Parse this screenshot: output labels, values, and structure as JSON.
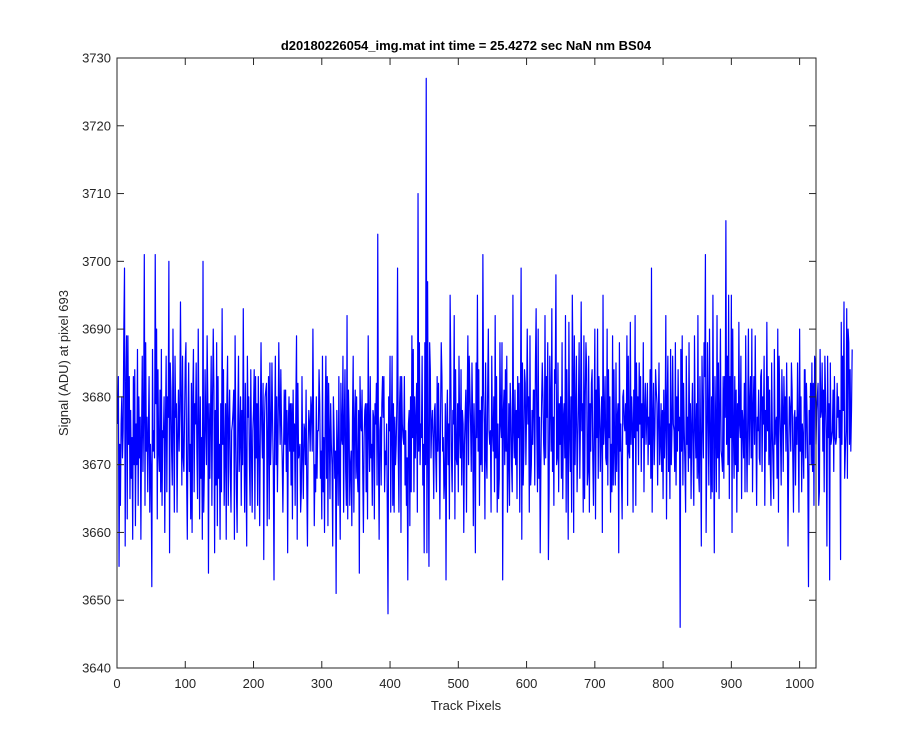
{
  "chart_data": {
    "type": "line",
    "title": "d20180226054_img.mat int time = 25.4272 sec  NaN nm BS04",
    "xlabel": "Track Pixels",
    "ylabel": "Signal (ADU) at pixel 693",
    "xlim": [
      0,
      1024
    ],
    "ylim": [
      3640,
      3730
    ],
    "xticks": [
      0,
      100,
      200,
      300,
      400,
      500,
      600,
      700,
      800,
      900,
      1000
    ],
    "yticks": [
      3640,
      3650,
      3660,
      3670,
      3680,
      3690,
      3700,
      3710,
      3720,
      3730
    ],
    "grid": false,
    "box": true,
    "line_color": "#0000ff",
    "axis_color": "#262626",
    "series": [
      {
        "x_start": 1,
        "x_step": 1,
        "values": [
          3676,
          3683,
          3655,
          3673,
          3664,
          3676,
          3680,
          3671,
          3675,
          3690,
          3699,
          3658,
          3681,
          3689,
          3662,
          3689,
          3673,
          3683,
          3665,
          3678,
          3668,
          3674,
          3659,
          3683,
          3670,
          3684,
          3661,
          3676,
          3670,
          3687,
          3664,
          3680,
          3671,
          3677,
          3659,
          3675,
          3686,
          3669,
          3677,
          3701,
          3664,
          3688,
          3672,
          3677,
          3666,
          3675,
          3683,
          3663,
          3673,
          3669,
          3652,
          3687,
          3672,
          3675,
          3671,
          3701,
          3679,
          3690,
          3662,
          3684,
          3672,
          3669,
          3681,
          3666,
          3687,
          3664,
          3675,
          3674,
          3680,
          3660,
          3676,
          3686,
          3666,
          3680,
          3677,
          3700,
          3657,
          3685,
          3681,
          3672,
          3667,
          3690,
          3676,
          3663,
          3686,
          3677,
          3679,
          3663,
          3674,
          3681,
          3672,
          3678,
          3694,
          3679,
          3667,
          3686,
          3671,
          3669,
          3677,
          3685,
          3688,
          3668,
          3659,
          3676,
          3685,
          3669,
          3673,
          3662,
          3682,
          3660,
          3680,
          3687,
          3666,
          3679,
          3676,
          3685,
          3672,
          3665,
          3690,
          3677,
          3662,
          3680,
          3668,
          3674,
          3659,
          3700,
          3663,
          3669,
          3684,
          3676,
          3670,
          3689,
          3680,
          3654,
          3679,
          3668,
          3677,
          3686,
          3664,
          3680,
          3690,
          3681,
          3657,
          3678,
          3667,
          3688,
          3661,
          3683,
          3668,
          3673,
          3659,
          3679,
          3666,
          3693,
          3673,
          3684,
          3664,
          3672,
          3679,
          3659,
          3680,
          3686,
          3664,
          3676,
          3681,
          3669,
          3663,
          3675,
          3676,
          3678,
          3681,
          3659,
          3689,
          3675,
          3666,
          3660,
          3677,
          3686,
          3669,
          3674,
          3680,
          3664,
          3678,
          3670,
          3693,
          3675,
          3663,
          3682,
          3669,
          3658,
          3686,
          3677,
          3680,
          3670,
          3664,
          3684,
          3672,
          3663,
          3675,
          3678,
          3684,
          3662,
          3683,
          3671,
          3679,
          3664,
          3683,
          3673,
          3661,
          3676,
          3688,
          3676,
          3671,
          3682,
          3656,
          3676,
          3680,
          3681,
          3682,
          3661,
          3674,
          3683,
          3662,
          3685,
          3670,
          3675,
          3685,
          3676,
          3669,
          3653,
          3676,
          3686,
          3670,
          3680,
          3666,
          3675,
          3688,
          3679,
          3673,
          3684,
          3676,
          3671,
          3663,
          3672,
          3681,
          3673,
          3681,
          3669,
          3678,
          3657,
          3676,
          3680,
          3672,
          3679,
          3667,
          3679,
          3662,
          3681,
          3672,
          3676,
          3664,
          3679,
          3689,
          3659,
          3682,
          3671,
          3672,
          3673,
          3663,
          3666,
          3683,
          3671,
          3665,
          3676,
          3675,
          3670,
          3681,
          3667,
          3658,
          3673,
          3678,
          3676,
          3672,
          3680,
          3678,
          3672,
          3690,
          3676,
          3661,
          3670,
          3666,
          3680,
          3668,
          3675,
          3675,
          3684,
          3679,
          3668,
          3672,
          3662,
          3686,
          3666,
          3674,
          3660,
          3677,
          3686,
          3668,
          3683,
          3661,
          3682,
          3675,
          3665,
          3679,
          3673,
          3670,
          3658,
          3680,
          3675,
          3668,
          3672,
          3651,
          3678,
          3672,
          3664,
          3683,
          3669,
          3659,
          3682,
          3674,
          3673,
          3686,
          3663,
          3676,
          3684,
          3669,
          3664,
          3692,
          3662,
          3681,
          3676,
          3664,
          3670,
          3672,
          3661,
          3677,
          3686,
          3663,
          3676,
          3681,
          3668,
          3680,
          3669,
          3666,
          3678,
          3654,
          3683,
          3676,
          3675,
          3681,
          3669,
          3660,
          3674,
          3678,
          3679,
          3666,
          3679,
          3662,
          3689,
          3675,
          3669,
          3683,
          3671,
          3673,
          3664,
          3678,
          3677,
          3662,
          3679,
          3676,
          3682,
          3667,
          3704,
          3672,
          3659,
          3675,
          3677,
          3667,
          3679,
          3683,
          3677,
          3683,
          3666,
          3672,
          3670,
          3676,
          3663,
          3648,
          3680,
          3675,
          3686,
          3663,
          3675,
          3686,
          3664,
          3679,
          3663,
          3677,
          3670,
          3673,
          3679,
          3699,
          3672,
          3663,
          3679,
          3683,
          3660,
          3683,
          3676,
          3674,
          3673,
          3683,
          3667,
          3675,
          3664,
          3671,
          3653,
          3676,
          3678,
          3661,
          3680,
          3666,
          3689,
          3674,
          3687,
          3666,
          3680,
          3671,
          3677,
          3682,
          3663,
          3710,
          3672,
          3688,
          3670,
          3676,
          3674,
          3686,
          3667,
          3673,
          3657,
          3688,
          3670,
          3727,
          3657,
          3697,
          3672,
          3655,
          3688,
          3684,
          3671,
          3676,
          3678,
          3674,
          3665,
          3678,
          3679,
          3671,
          3666,
          3683,
          3672,
          3682,
          3673,
          3662,
          3677,
          3688,
          3683,
          3672,
          3674,
          3665,
          3668,
          3679,
          3653,
          3676,
          3681,
          3670,
          3676,
          3662,
          3695,
          3684,
          3671,
          3666,
          3678,
          3676,
          3692,
          3662,
          3684,
          3671,
          3670,
          3679,
          3666,
          3686,
          3675,
          3671,
          3684,
          3667,
          3678,
          3676,
          3660,
          3673,
          3677,
          3681,
          3663,
          3679,
          3689,
          3670,
          3686,
          3681,
          3676,
          3669,
          3685,
          3677,
          3661,
          3679,
          3673,
          3657,
          3685,
          3674,
          3695,
          3672,
          3684,
          3664,
          3678,
          3670,
          3680,
          3669,
          3701,
          3681,
          3676,
          3662,
          3685,
          3671,
          3668,
          3681,
          3690,
          3675,
          3673,
          3675,
          3663,
          3686,
          3675,
          3672,
          3680,
          3666,
          3692,
          3671,
          3683,
          3663,
          3676,
          3665,
          3668,
          3688,
          3676,
          3674,
          3688,
          3653,
          3678,
          3681,
          3670,
          3684,
          3672,
          3686,
          3663,
          3670,
          3679,
          3664,
          3682,
          3678,
          3670,
          3666,
          3695,
          3675,
          3671,
          3681,
          3670,
          3678,
          3665,
          3683,
          3674,
          3682,
          3663,
          3678,
          3699,
          3659,
          3685,
          3667,
          3672,
          3684,
          3682,
          3670,
          3678,
          3690,
          3676,
          3680,
          3663,
          3689,
          3667,
          3670,
          3678,
          3673,
          3681,
          3681,
          3667,
          3685,
          3693,
          3675,
          3666,
          3690,
          3668,
          3677,
          3657,
          3670,
          3679,
          3685,
          3680,
          3673,
          3670,
          3692,
          3671,
          3683,
          3677,
          3688,
          3656,
          3666,
          3686,
          3679,
          3672,
          3693,
          3669,
          3677,
          3664,
          3684,
          3682,
          3698,
          3670,
          3671,
          3685,
          3666,
          3679,
          3673,
          3680,
          3668,
          3688,
          3665,
          3677,
          3679,
          3671,
          3692,
          3663,
          3684,
          3673,
          3659,
          3691,
          3675,
          3669,
          3680,
          3663,
          3695,
          3684,
          3660,
          3689,
          3670,
          3678,
          3686,
          3666,
          3673,
          3679,
          3688,
          3668,
          3677,
          3694,
          3675,
          3679,
          3663,
          3689,
          3665,
          3680,
          3688,
          3684,
          3667,
          3669,
          3686,
          3663,
          3679,
          3672,
          3682,
          3684,
          3671,
          3664,
          3676,
          3690,
          3662,
          3681,
          3674,
          3690,
          3668,
          3683,
          3678,
          3669,
          3675,
          3680,
          3660,
          3695,
          3673,
          3676,
          3683,
          3671,
          3670,
          3690,
          3667,
          3684,
          3674,
          3680,
          3663,
          3673,
          3666,
          3689,
          3667,
          3684,
          3672,
          3667,
          3685,
          3669,
          3677,
          3679,
          3657,
          3688,
          3672,
          3676,
          3669,
          3662,
          3680,
          3681,
          3676,
          3675,
          3679,
          3673,
          3689,
          3664,
          3686,
          3672,
          3671,
          3691,
          3673,
          3680,
          3676,
          3663,
          3681,
          3674,
          3692,
          3664,
          3685,
          3675,
          3680,
          3670,
          3685,
          3676,
          3683,
          3669,
          3679,
          3674,
          3688,
          3666,
          3678,
          3682,
          3673,
          3677,
          3682,
          3670,
          3677,
          3673,
          3684,
          3668,
          3699,
          3663,
          3676,
          3682,
          3670,
          3675,
          3684,
          3681,
          3679,
          3667,
          3677,
          3685,
          3670,
          3673,
          3679,
          3669,
          3678,
          3665,
          3681,
          3671,
          3676,
          3692,
          3662,
          3679,
          3686,
          3669,
          3676,
          3665,
          3687,
          3670,
          3675,
          3686,
          3676,
          3675,
          3669,
          3688,
          3667,
          3680,
          3672,
          3684,
          3675,
          3677,
          3646,
          3687,
          3672,
          3689,
          3667,
          3682,
          3675,
          3670,
          3663,
          3686,
          3673,
          3677,
          3669,
          3688,
          3671,
          3679,
          3665,
          3676,
          3682,
          3671,
          3664,
          3689,
          3676,
          3671,
          3679,
          3668,
          3692,
          3669,
          3666,
          3683,
          3673,
          3658,
          3686,
          3677,
          3671,
          3688,
          3683,
          3701,
          3660,
          3671,
          3688,
          3677,
          3667,
          3690,
          3676,
          3665,
          3680,
          3666,
          3695,
          3675,
          3657,
          3683,
          3676,
          3666,
          3692,
          3671,
          3685,
          3665,
          3678,
          3690,
          3672,
          3671,
          3669,
          3683,
          3668,
          3683,
          3677,
          3706,
          3673,
          3686,
          3670,
          3695,
          3665,
          3683,
          3674,
          3695,
          3660,
          3690,
          3675,
          3668,
          3683,
          3670,
          3681,
          3663,
          3679,
          3669,
          3691,
          3676,
          3674,
          3686,
          3665,
          3678,
          3676,
          3671,
          3682,
          3666,
          3689,
          3675,
          3666,
          3677,
          3690,
          3670,
          3679,
          3683,
          3671,
          3690,
          3666,
          3678,
          3683,
          3673,
          3689,
          3676,
          3664,
          3677,
          3675,
          3681,
          3671,
          3670,
          3683,
          3684,
          3669,
          3680,
          3676,
          3686,
          3664,
          3678,
          3672,
          3691,
          3675,
          3683,
          3670,
          3681,
          3670,
          3664,
          3685,
          3675,
          3670,
          3665,
          3687,
          3673,
          3676,
          3677,
          3668,
          3690,
          3663,
          3686,
          3679,
          3674,
          3667,
          3684,
          3678,
          3669,
          3683,
          3676,
          3680,
          3672,
          3685,
          3675,
          3658,
          3671,
          3680,
          3678,
          3672,
          3685,
          3681,
          3671,
          3663,
          3677,
          3678,
          3667,
          3677,
          3673,
          3685,
          3675,
          3663,
          3690,
          3672,
          3680,
          3666,
          3676,
          3674,
          3668,
          3684,
          3684,
          3671,
          3682,
          3677,
          3668,
          3652,
          3678,
          3673,
          3682,
          3670,
          3685,
          3669,
          3682,
          3664,
          3686,
          3685,
          3673,
          3678,
          3680,
          3682,
          3664,
          3666,
          3687,
          3677,
          3678,
          3685,
          3672,
          3681,
          3666,
          3686,
          3680,
          3674,
          3658,
          3686,
          3674,
          3679,
          3653,
          3685,
          3673,
          3674,
          3675,
          3681,
          3669,
          3683,
          3674,
          3673,
          3674,
          3682,
          3677,
          3680,
          3674,
          3678,
          3656,
          3691,
          3673,
          3686,
          3678,
          3694,
          3668,
          3672,
          3675,
          3693,
          3668,
          3690,
          3688,
          3673,
          3684,
          3672,
          3678,
          3687
        ]
      }
    ]
  }
}
